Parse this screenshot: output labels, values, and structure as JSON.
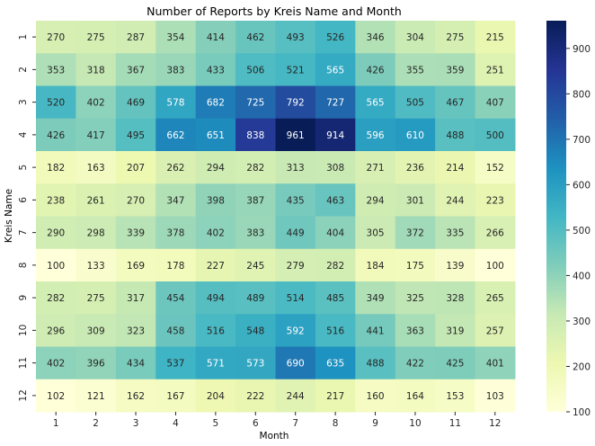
{
  "chart_data": {
    "type": "heatmap",
    "title": "Number of Reports by Kreis Name and Month",
    "xlabel": "Month",
    "ylabel": "Kreis Name",
    "x_categories": [
      "1",
      "2",
      "3",
      "4",
      "5",
      "6",
      "7",
      "8",
      "9",
      "10",
      "11",
      "12"
    ],
    "y_categories": [
      "1",
      "2",
      "3",
      "4",
      "5",
      "6",
      "7",
      "8",
      "9",
      "10",
      "11",
      "12"
    ],
    "values": [
      [
        270,
        275,
        287,
        354,
        414,
        462,
        493,
        526,
        346,
        304,
        275,
        215
      ],
      [
        353,
        318,
        367,
        383,
        433,
        506,
        521,
        565,
        426,
        355,
        359,
        251
      ],
      [
        520,
        402,
        469,
        578,
        682,
        725,
        792,
        727,
        565,
        505,
        467,
        407
      ],
      [
        426,
        417,
        495,
        662,
        651,
        838,
        961,
        914,
        596,
        610,
        488,
        500
      ],
      [
        182,
        163,
        207,
        262,
        294,
        282,
        313,
        308,
        271,
        236,
        214,
        152
      ],
      [
        238,
        261,
        270,
        347,
        398,
        387,
        435,
        463,
        294,
        301,
        244,
        223
      ],
      [
        290,
        298,
        339,
        378,
        402,
        383,
        449,
        404,
        305,
        372,
        335,
        266
      ],
      [
        100,
        133,
        169,
        178,
        227,
        245,
        279,
        282,
        184,
        175,
        139,
        100
      ],
      [
        282,
        275,
        317,
        454,
        494,
        489,
        514,
        485,
        349,
        325,
        328,
        265
      ],
      [
        296,
        309,
        323,
        458,
        516,
        548,
        592,
        516,
        441,
        363,
        319,
        257
      ],
      [
        402,
        396,
        434,
        537,
        571,
        573,
        690,
        635,
        488,
        422,
        425,
        401
      ],
      [
        102,
        121,
        162,
        167,
        204,
        222,
        244,
        217,
        160,
        164,
        153,
        103
      ]
    ],
    "colorbar": {
      "min": 100,
      "max": 961,
      "ticks": [
        100,
        200,
        300,
        400,
        500,
        600,
        700,
        800,
        900
      ]
    },
    "colormap": "YlGnBu",
    "colormap_stops": [
      "#ffffd9",
      "#edf8b1",
      "#c7e9b4",
      "#7fcdbb",
      "#41b6c4",
      "#1d91c0",
      "#225ea8",
      "#253494",
      "#081d58"
    ],
    "annotated": true
  }
}
